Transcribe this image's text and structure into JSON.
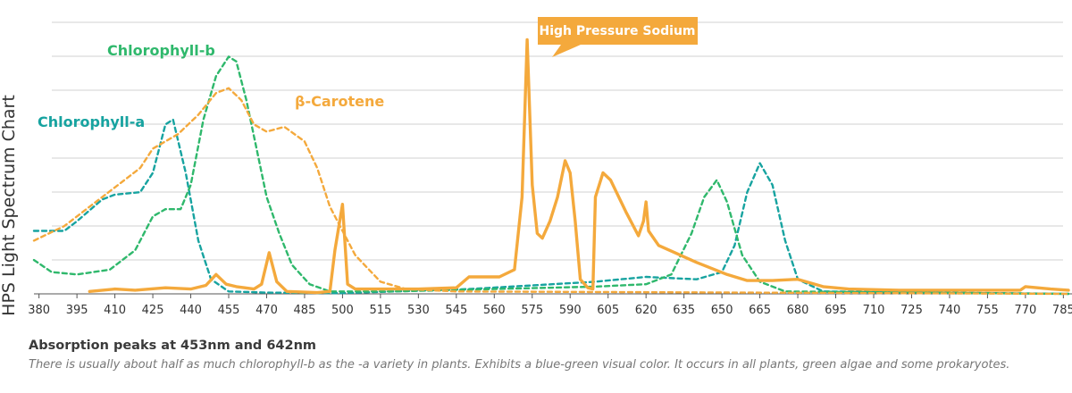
{
  "chart_data": {
    "type": "line",
    "ylabel": "HPS Light Spectrum Chart",
    "xlabel": "",
    "xlim": [
      378,
      787
    ],
    "ylim": [
      0,
      100
    ],
    "x_ticks": [
      380,
      395,
      410,
      425,
      440,
      455,
      470,
      485,
      500,
      515,
      530,
      545,
      560,
      575,
      590,
      605,
      620,
      635,
      650,
      665,
      680,
      695,
      710,
      725,
      740,
      755,
      770,
      785
    ],
    "grid": "horizontal",
    "annotations": {
      "chl_b": "Chlorophyll-b",
      "chl_a": "Chlorophyll-a",
      "carotene": "β-Carotene",
      "hps": "High Pressure Sodium"
    },
    "colors": {
      "chl_a": "#17a3a0",
      "chl_b": "#2fb86c",
      "carotene": "#f4a93c",
      "hps": "#f4a93c",
      "grid": "#d2d2d2",
      "axis": "#555555"
    },
    "series": [
      {
        "name": "Chlorophyll-a",
        "style": "dashed",
        "points": [
          [
            378,
            26
          ],
          [
            390,
            26
          ],
          [
            395,
            30
          ],
          [
            405,
            39
          ],
          [
            410,
            41
          ],
          [
            420,
            42
          ],
          [
            425,
            50
          ],
          [
            430,
            70
          ],
          [
            433,
            72
          ],
          [
            438,
            50
          ],
          [
            443,
            22
          ],
          [
            448,
            6
          ],
          [
            455,
            1
          ],
          [
            470,
            0.5
          ],
          [
            500,
            0.3
          ],
          [
            550,
            2
          ],
          [
            600,
            5
          ],
          [
            620,
            7
          ],
          [
            640,
            6
          ],
          [
            650,
            9
          ],
          [
            655,
            20
          ],
          [
            660,
            42
          ],
          [
            665,
            54
          ],
          [
            670,
            45
          ],
          [
            675,
            22
          ],
          [
            680,
            6
          ],
          [
            690,
            1
          ],
          [
            787,
            0
          ]
        ]
      },
      {
        "name": "Chlorophyll-b",
        "style": "dashed",
        "points": [
          [
            378,
            14
          ],
          [
            385,
            9
          ],
          [
            395,
            8
          ],
          [
            408,
            10
          ],
          [
            418,
            18
          ],
          [
            425,
            32
          ],
          [
            430,
            35
          ],
          [
            436,
            35
          ],
          [
            440,
            45
          ],
          [
            445,
            72
          ],
          [
            450,
            90
          ],
          [
            455,
            98
          ],
          [
            458,
            96
          ],
          [
            462,
            80
          ],
          [
            466,
            60
          ],
          [
            470,
            40
          ],
          [
            475,
            25
          ],
          [
            480,
            12
          ],
          [
            487,
            4
          ],
          [
            495,
            1
          ],
          [
            520,
            1
          ],
          [
            560,
            2
          ],
          [
            600,
            3
          ],
          [
            620,
            4
          ],
          [
            630,
            8
          ],
          [
            638,
            25
          ],
          [
            643,
            40
          ],
          [
            648,
            47
          ],
          [
            652,
            38
          ],
          [
            658,
            16
          ],
          [
            665,
            5
          ],
          [
            675,
            1
          ],
          [
            787,
            0
          ]
        ]
      },
      {
        "name": "β-Carotene",
        "style": "dashed",
        "points": [
          [
            378,
            22
          ],
          [
            390,
            28
          ],
          [
            400,
            36
          ],
          [
            410,
            44
          ],
          [
            420,
            52
          ],
          [
            425,
            60
          ],
          [
            435,
            66
          ],
          [
            443,
            74
          ],
          [
            450,
            83
          ],
          [
            455,
            85
          ],
          [
            460,
            80
          ],
          [
            465,
            70
          ],
          [
            470,
            67
          ],
          [
            477,
            69
          ],
          [
            485,
            63
          ],
          [
            490,
            52
          ],
          [
            495,
            36
          ],
          [
            505,
            16
          ],
          [
            515,
            5
          ],
          [
            525,
            2
          ],
          [
            545,
            1
          ],
          [
            787,
            0
          ]
        ]
      },
      {
        "name": "High Pressure Sodium",
        "style": "solid",
        "points": [
          [
            400,
            1
          ],
          [
            410,
            2
          ],
          [
            418,
            1.5
          ],
          [
            430,
            2.5
          ],
          [
            440,
            2
          ],
          [
            446,
            3.5
          ],
          [
            450,
            8
          ],
          [
            454,
            4
          ],
          [
            458,
            3
          ],
          [
            465,
            2
          ],
          [
            468,
            4
          ],
          [
            471,
            17
          ],
          [
            474,
            5
          ],
          [
            478,
            1
          ],
          [
            490,
            0.5
          ],
          [
            495,
            1
          ],
          [
            497,
            18
          ],
          [
            500,
            37
          ],
          [
            502,
            4
          ],
          [
            505,
            2
          ],
          [
            515,
            2
          ],
          [
            530,
            2
          ],
          [
            545,
            2.5
          ],
          [
            550,
            7
          ],
          [
            562,
            7
          ],
          [
            568,
            10
          ],
          [
            571,
            40
          ],
          [
            573,
            105
          ],
          [
            575,
            45
          ],
          [
            577,
            25
          ],
          [
            579,
            23
          ],
          [
            582,
            30
          ],
          [
            585,
            40
          ],
          [
            588,
            55
          ],
          [
            590,
            50
          ],
          [
            592,
            30
          ],
          [
            594,
            6
          ],
          [
            597,
            2.5
          ],
          [
            599,
            2
          ],
          [
            600,
            40
          ],
          [
            603,
            50
          ],
          [
            606,
            47
          ],
          [
            612,
            34
          ],
          [
            617,
            24
          ],
          [
            619,
            30
          ],
          [
            620,
            38
          ],
          [
            621,
            26
          ],
          [
            625,
            20
          ],
          [
            640,
            13
          ],
          [
            652,
            8
          ],
          [
            660,
            5.5
          ],
          [
            670,
            5.5
          ],
          [
            680,
            6
          ],
          [
            690,
            3
          ],
          [
            700,
            2
          ],
          [
            720,
            1.5
          ],
          [
            750,
            1.5
          ],
          [
            768,
            1.5
          ],
          [
            770,
            3
          ],
          [
            780,
            2
          ],
          [
            787,
            1.5
          ]
        ]
      }
    ]
  },
  "caption": {
    "title": "Absorption peaks at 453nm and 642nm",
    "body": "There is usually about half as much chlorophyll-b as the -a  variety in plants. Exhibits a blue-green visual color. It occurs in  all plants, green algae and some prokaryotes."
  }
}
